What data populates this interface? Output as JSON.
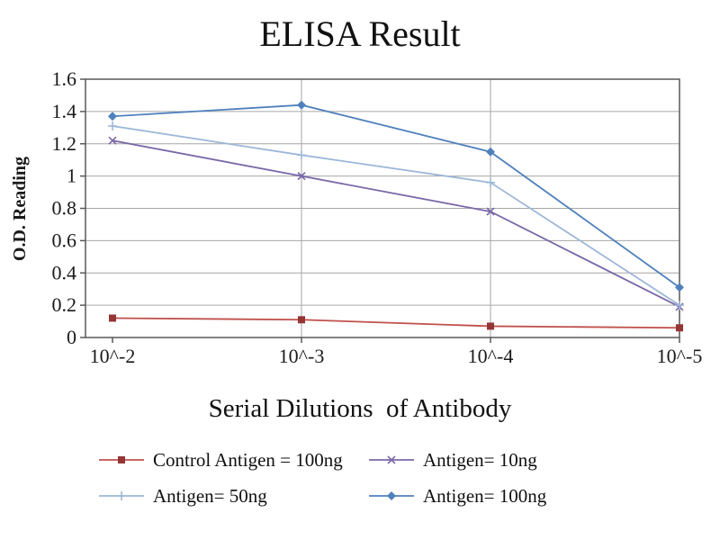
{
  "chart_data": {
    "type": "line",
    "title": "ELISA Result",
    "xlabel": "Serial Dilutions  of Antibody",
    "ylabel": "O.D. Reading",
    "categories": [
      "10^-2",
      "10^-3",
      "10^-4",
      "10^-5"
    ],
    "ylim": [
      0,
      1.6
    ],
    "ytick_step": 0.2,
    "grid": true,
    "legend_position": "bottom",
    "series": [
      {
        "name": "Control Antigen = 100ng",
        "marker": "square",
        "line_color": "#c0504d",
        "marker_color": "#943634",
        "values": [
          0.12,
          0.11,
          0.07,
          0.06
        ]
      },
      {
        "name": "Antigen= 10ng",
        "marker": "x",
        "line_color": "#7a68a8",
        "marker_color": "#7a68a8",
        "values": [
          1.22,
          1.0,
          0.78,
          0.19
        ]
      },
      {
        "name": "Antigen= 50ng",
        "marker": "plus",
        "line_color": "#9db7d8",
        "marker_color": "#9db7d8",
        "values": [
          1.31,
          1.13,
          0.96,
          0.2
        ]
      },
      {
        "name": "Antigen= 100ng",
        "marker": "diamond",
        "line_color": "#4f81bd",
        "marker_color": "#4f81bd",
        "values": [
          1.37,
          1.44,
          1.15,
          0.31
        ]
      }
    ],
    "colors": {
      "gridline": "#a6a6a6",
      "axis": "#595959",
      "text": "#1a1a1a",
      "background": "#ffffff"
    }
  },
  "legend": {
    "rows": [
      [
        0,
        1
      ],
      [
        2,
        3
      ]
    ]
  }
}
